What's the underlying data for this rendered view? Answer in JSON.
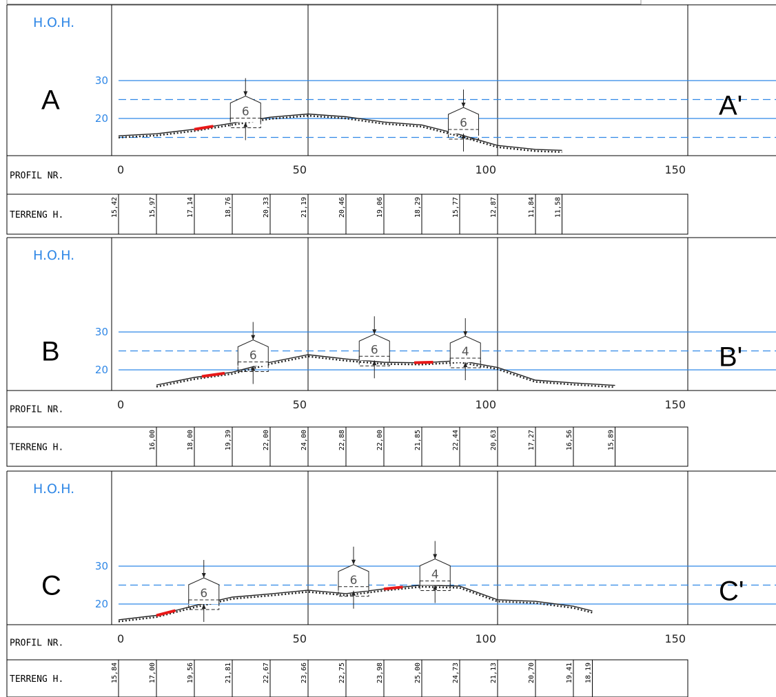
{
  "labels": {
    "hoh": "H.O.H.",
    "profil_nr": "PROFIL NR.",
    "terreng_h": "TERRENG H."
  },
  "colors": {
    "gridline": "#2f87e6",
    "red_segment": "#e81818",
    "terrain": "#222222"
  },
  "x_ticks": [
    "0",
    "50",
    "100",
    "150"
  ],
  "chart_data": [
    {
      "type": "line",
      "label_left": "A",
      "label_right": "A'",
      "y_ticks": [
        "30",
        "20"
      ],
      "solid_levels": [
        30,
        20
      ],
      "dashed_levels": [
        25,
        15
      ],
      "ylim": [
        11.5,
        35.5
      ],
      "xlim": [
        0,
        150
      ],
      "terrain": [
        [
          0,
          15.42
        ],
        [
          10,
          15.97
        ],
        [
          20,
          17.14
        ],
        [
          30,
          18.76
        ],
        [
          40,
          20.33
        ],
        [
          50,
          21.19
        ],
        [
          60,
          20.46
        ],
        [
          70,
          19.06
        ],
        [
          80,
          18.29
        ],
        [
          90,
          15.77
        ],
        [
          100,
          12.87
        ],
        [
          110,
          11.84
        ],
        [
          117,
          11.58
        ]
      ],
      "terreng_values": [
        "15,42",
        "15,97",
        "17,14",
        "18,76",
        "20,33",
        "21,19",
        "20,46",
        "19,06",
        "18,29",
        "15,77",
        "12,87",
        "11,84",
        "11,58"
      ],
      "terreng_x": [
        0,
        10,
        20,
        30,
        40,
        50,
        60,
        70,
        80,
        90,
        100,
        110,
        117
      ],
      "red_segments": [
        [
          20,
          25
        ]
      ],
      "houses": [
        {
          "x": 33.5,
          "base": 19,
          "label": "6"
        },
        {
          "x": 91,
          "base": 16,
          "label": "6"
        }
      ]
    },
    {
      "type": "line",
      "label_left": "B",
      "label_right": "B'",
      "y_ticks": [
        "30",
        "20"
      ],
      "solid_levels": [
        30,
        20
      ],
      "dashed_levels": [
        25
      ],
      "ylim": [
        15,
        39
      ],
      "xlim": [
        0,
        150
      ],
      "terrain": [
        [
          10,
          16.0
        ],
        [
          20,
          18.0
        ],
        [
          30,
          19.39
        ],
        [
          40,
          22.0
        ],
        [
          50,
          24.0
        ],
        [
          60,
          22.88
        ],
        [
          70,
          22.0
        ],
        [
          80,
          21.85
        ],
        [
          90,
          22.44
        ],
        [
          100,
          20.63
        ],
        [
          110,
          17.27
        ],
        [
          120,
          16.56
        ],
        [
          131,
          15.89
        ]
      ],
      "terreng_values": [
        "16,00",
        "18,00",
        "19,39",
        "22,00",
        "24,00",
        "22,88",
        "22,00",
        "21,85",
        "22,44",
        "20,63",
        "17,27",
        "16,56",
        "15,89"
      ],
      "terreng_x": [
        10,
        20,
        30,
        40,
        50,
        60,
        70,
        80,
        90,
        100,
        110,
        120,
        131
      ],
      "red_segments": [
        [
          22,
          28
        ],
        [
          78,
          83
        ]
      ],
      "houses": [
        {
          "x": 35.5,
          "base": 21,
          "label": "6"
        },
        {
          "x": 67.5,
          "base": 22.5,
          "label": "6"
        },
        {
          "x": 91.5,
          "base": 22,
          "label": "4"
        }
      ]
    },
    {
      "type": "line",
      "label_left": "C",
      "label_right": "C'",
      "y_ticks": [
        "30",
        "20"
      ],
      "solid_levels": [
        30,
        20
      ],
      "dashed_levels": [
        25
      ],
      "ylim": [
        15,
        38.5
      ],
      "xlim": [
        0,
        150
      ],
      "terrain": [
        [
          0,
          15.84
        ],
        [
          10,
          17.0
        ],
        [
          20,
          19.56
        ],
        [
          30,
          21.81
        ],
        [
          40,
          22.67
        ],
        [
          50,
          23.66
        ],
        [
          60,
          22.75
        ],
        [
          70,
          23.98
        ],
        [
          80,
          25.0
        ],
        [
          90,
          24.73
        ],
        [
          100,
          21.13
        ],
        [
          110,
          20.7
        ],
        [
          120,
          19.41
        ],
        [
          125,
          18.19
        ]
      ],
      "terreng_values": [
        "15,84",
        "17,00",
        "19,56",
        "21,81",
        "22,67",
        "23,66",
        "22,75",
        "23,98",
        "25,00",
        "24,73",
        "21,13",
        "20,70",
        "19,41",
        "18,19"
      ],
      "terreng_x": [
        0,
        10,
        20,
        30,
        40,
        50,
        60,
        70,
        80,
        90,
        100,
        110,
        120,
        125
      ],
      "red_segments": [
        [
          10,
          15
        ],
        [
          70,
          75
        ]
      ],
      "houses": [
        {
          "x": 22.5,
          "base": 20,
          "label": "6"
        },
        {
          "x": 62,
          "base": 23.5,
          "label": "6"
        },
        {
          "x": 83.5,
          "base": 25,
          "label": "4"
        }
      ]
    }
  ]
}
